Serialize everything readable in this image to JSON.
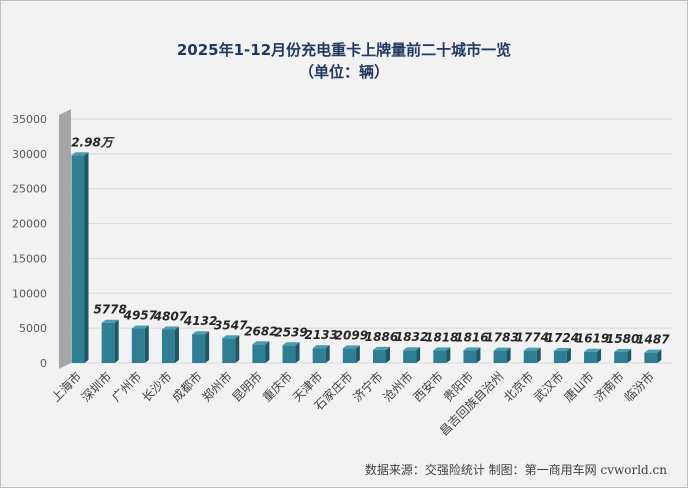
{
  "chart_data": {
    "type": "bar",
    "title": "2025年1-12月份充电重卡上牌量前二十城市一览",
    "subtitle": "（单位：辆）",
    "categories": [
      "上海市",
      "深圳市",
      "广州市",
      "长沙市",
      "成都市",
      "郑州市",
      "昆明市",
      "重庆市",
      "天津市",
      "石家庄市",
      "济宁市",
      "沧州市",
      "西安市",
      "贵阳市",
      "昌吉回族自治州",
      "北京市",
      "武汉市",
      "唐山市",
      "济南市",
      "临汾市"
    ],
    "values": [
      29800,
      5778,
      4957,
      4807,
      4132,
      3547,
      2682,
      2539,
      2133,
      2099,
      1886,
      1832,
      1818,
      1816,
      1783,
      1774,
      1724,
      1619,
      1580,
      1487
    ],
    "data_labels": [
      "2.98万",
      "5778",
      "4957",
      "4807",
      "4132",
      "3547",
      "2682",
      "2539",
      "2133",
      "2099",
      "1886",
      "1832",
      "1818",
      "1816",
      "1783",
      "1774",
      "1724",
      "1619",
      "1580",
      "1487"
    ],
    "yticks": [
      "0",
      "5000",
      "10000",
      "15000",
      "20000",
      "25000",
      "30000",
      "35000"
    ],
    "ylim": [
      0,
      35000
    ],
    "grid": true,
    "bar_color": "#2e7f93",
    "source": "数据来源：交强险统计   制图：第一商用车网 cvworld.cn"
  }
}
